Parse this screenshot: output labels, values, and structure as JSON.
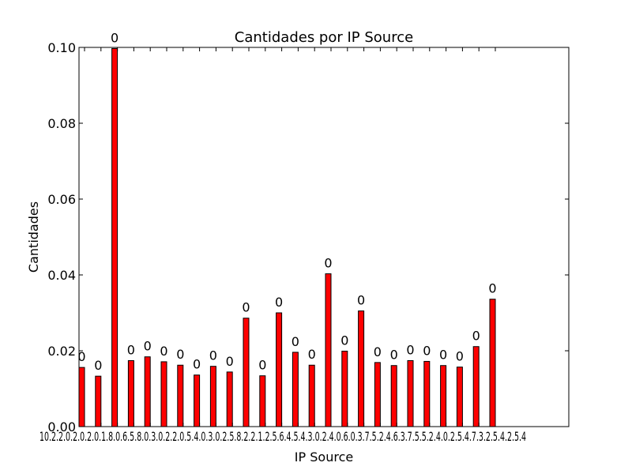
{
  "chart_data": {
    "type": "bar",
    "title": "Cantidades por IP Source",
    "xlabel": "IP Source",
    "ylabel": "Cantidades",
    "ylim": [
      0,
      0.1
    ],
    "yticks": [
      "0.00",
      "0.02",
      "0.04",
      "0.06",
      "0.08",
      "0.10"
    ],
    "xtick_text": "10.2.2.0.2.0.2.0.1.8.0.6.5.8.0.3.0.2.2.0.5.4.0.3.0.2.5.8.2.2.1.2.5.6.4.5.4.3.0.2.4.0.6.0.3.7.5.2.4.6.3.7.5.5.2.4.0.2.5.4.7.3.2.5.4.2.5.4",
    "bar_label": "0",
    "bar_color": "#ff0000",
    "grid": false,
    "legend": "none",
    "values": [
      0.0156,
      0.0133,
      0.0997,
      0.0174,
      0.0184,
      0.0171,
      0.0162,
      0.0136,
      0.0159,
      0.0144,
      0.0286,
      0.0134,
      0.03,
      0.0196,
      0.0162,
      0.0403,
      0.0199,
      0.0305,
      0.0169,
      0.0161,
      0.0174,
      0.0172,
      0.0161,
      0.0157,
      0.0211,
      0.0336
    ]
  }
}
